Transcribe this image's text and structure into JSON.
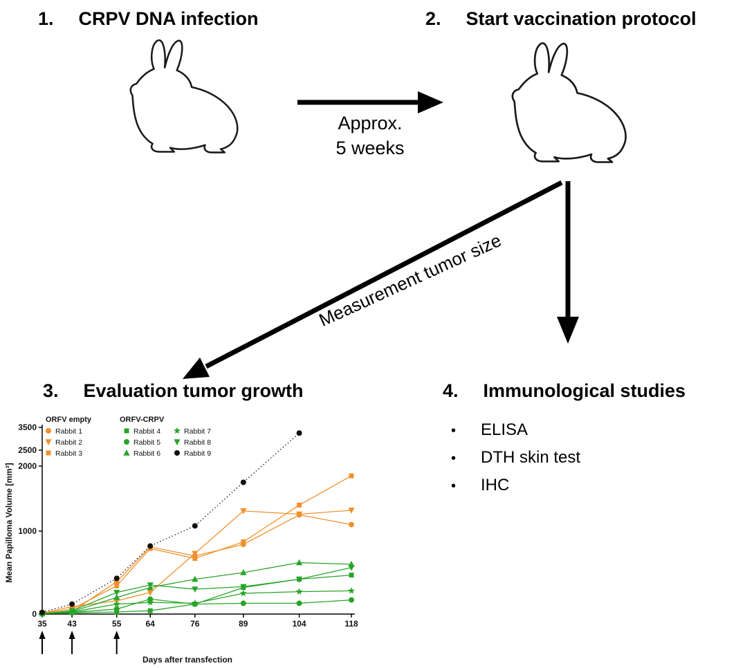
{
  "steps": [
    {
      "number": "1.",
      "label": "CRPV DNA infection"
    },
    {
      "number": "2.",
      "label": "Start vaccination protocol"
    },
    {
      "number": "3.",
      "label": "Evaluation tumor growth"
    },
    {
      "number": "4.",
      "label": "Immunological studies"
    }
  ],
  "arrow_labels": {
    "approx_line1": "Approx.",
    "approx_line2": "5 weeks",
    "measurement": "Measurement tumor size"
  },
  "bullets": [
    "ELISA",
    "DTH skin test",
    "IHC"
  ],
  "chart_data": {
    "type": "line",
    "title": "",
    "xlabel": "Days after transfection",
    "ylabel": "Mean Papilloma Volume [mm³]",
    "x": [
      35,
      43,
      55,
      64,
      76,
      89,
      104,
      118
    ],
    "y_ticks": [
      0,
      1000,
      2000,
      2500,
      3500
    ],
    "ylim": [
      0,
      3500
    ],
    "grid": false,
    "legend_position": "top-left-inside",
    "vaccination_arrows_at_days": [
      35,
      43,
      55
    ],
    "legend_groups": [
      {
        "label": "ORFV empty"
      },
      {
        "label": "ORFV-CRPV"
      }
    ],
    "series": [
      {
        "name": "Rabbit 1",
        "group": "ORFV empty",
        "color": "#F0912C",
        "marker": "circle",
        "line": "solid",
        "values": [
          10,
          30,
          390,
          810,
          700,
          840,
          1250,
          1100
        ]
      },
      {
        "name": "Rabbit 2",
        "group": "ORFV empty",
        "color": "#F0912C",
        "marker": "triangle-down",
        "line": "solid",
        "values": [
          10,
          90,
          160,
          260,
          730,
          1310,
          1260,
          1320
        ]
      },
      {
        "name": "Rabbit 3",
        "group": "ORFV empty",
        "color": "#F0912C",
        "marker": "square",
        "line": "solid",
        "values": [
          10,
          60,
          340,
          790,
          670,
          870,
          1400,
          1850
        ]
      },
      {
        "name": "Rabbit 4",
        "group": "ORFV-CRPV",
        "color": "#28A428",
        "marker": "square",
        "line": "solid",
        "values": [
          5,
          15,
          25,
          40,
          120,
          320,
          420,
          470
        ]
      },
      {
        "name": "Rabbit 5",
        "group": "ORFV-CRPV",
        "color": "#28A428",
        "marker": "circle",
        "line": "solid",
        "values": [
          5,
          20,
          60,
          180,
          120,
          130,
          130,
          170
        ]
      },
      {
        "name": "Rabbit 6",
        "group": "ORFV-CRPV",
        "color": "#28A428",
        "marker": "triangle-up",
        "line": "solid",
        "values": [
          5,
          30,
          200,
          320,
          420,
          500,
          620,
          600
        ]
      },
      {
        "name": "Rabbit 7",
        "group": "ORFV-CRPV",
        "color": "#28A428",
        "marker": "star",
        "line": "solid",
        "values": [
          5,
          25,
          120,
          140,
          130,
          250,
          270,
          280
        ]
      },
      {
        "name": "Rabbit 8",
        "group": "ORFV-CRPV",
        "color": "#28A428",
        "marker": "triangle-down",
        "line": "solid",
        "values": [
          5,
          40,
          260,
          350,
          300,
          330,
          420,
          560
        ]
      },
      {
        "name": "Rabbit 9",
        "group": "ORFV-CRPV",
        "color": "#111111",
        "marker": "circle",
        "line": "dotted",
        "values": [
          20,
          120,
          430,
          820,
          1080,
          1750,
          3250,
          null
        ]
      }
    ]
  }
}
